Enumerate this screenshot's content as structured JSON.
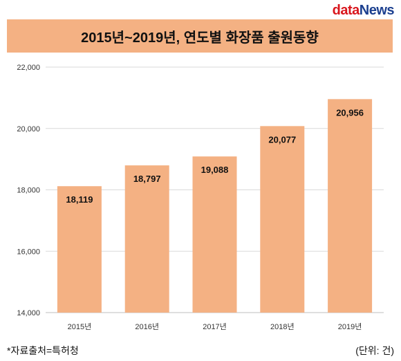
{
  "logo": {
    "part1": "data",
    "part2": "News"
  },
  "header": {
    "title": "2015년~2019년, 연도별 화장품 출원동향"
  },
  "footer": {
    "source": "*자료출처=특허청",
    "unit": "(단위: 건)"
  },
  "colors": {
    "bar": "#f4b183",
    "grid": "#d9d9d9",
    "axis": "#bfbfbf"
  },
  "chart_data": {
    "type": "bar",
    "title": "2015년~2019년, 연도별 화장품 출원동향",
    "categories": [
      "2015년",
      "2016년",
      "2017년",
      "2018년",
      "2019년"
    ],
    "values": [
      18119,
      18797,
      19088,
      20077,
      20956
    ],
    "value_labels": [
      "18,119",
      "18,797",
      "19,088",
      "20,077",
      "20,956"
    ],
    "ylim": [
      14000,
      22000
    ],
    "yticks": [
      14000,
      16000,
      18000,
      20000,
      22000
    ],
    "ytick_labels": [
      "14,000",
      "16,000",
      "18,000",
      "20,000",
      "22,000"
    ],
    "grid": true,
    "legend": "none"
  }
}
